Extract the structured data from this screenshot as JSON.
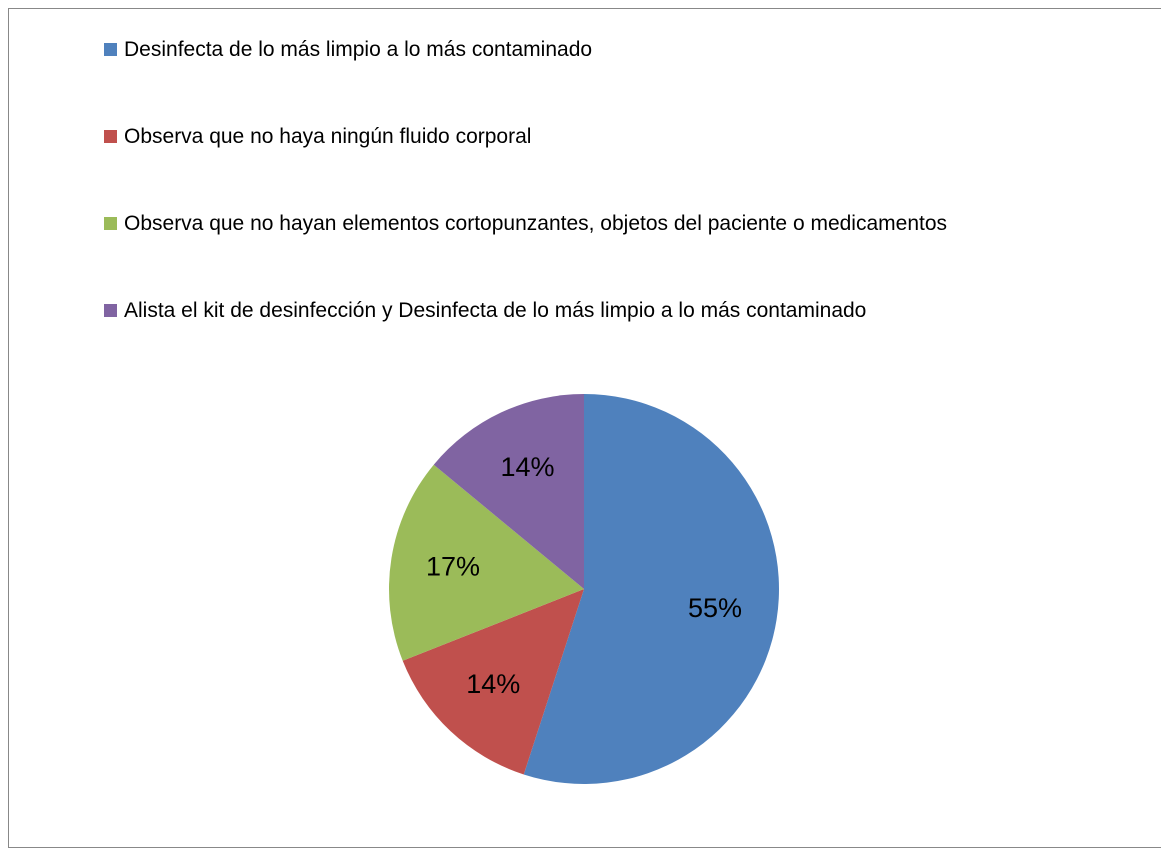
{
  "chart_data": {
    "type": "pie",
    "categories": [
      "Desinfecta de lo más limpio a lo más contaminado",
      "Observa que no haya ningún fluido corporal",
      "Observa que no hayan elementos cortopunzantes, objetos del paciente o medicamentos",
      "Alista el kit de desinfección y Desinfecta de lo más limpio a lo más contaminado"
    ],
    "values": [
      55,
      14,
      17,
      14
    ],
    "value_labels": [
      "55%",
      "14%",
      "17%",
      "14%"
    ],
    "colors": [
      "#4f81bd",
      "#c0504d",
      "#9bbb59",
      "#8064a2"
    ],
    "legend": "top"
  }
}
